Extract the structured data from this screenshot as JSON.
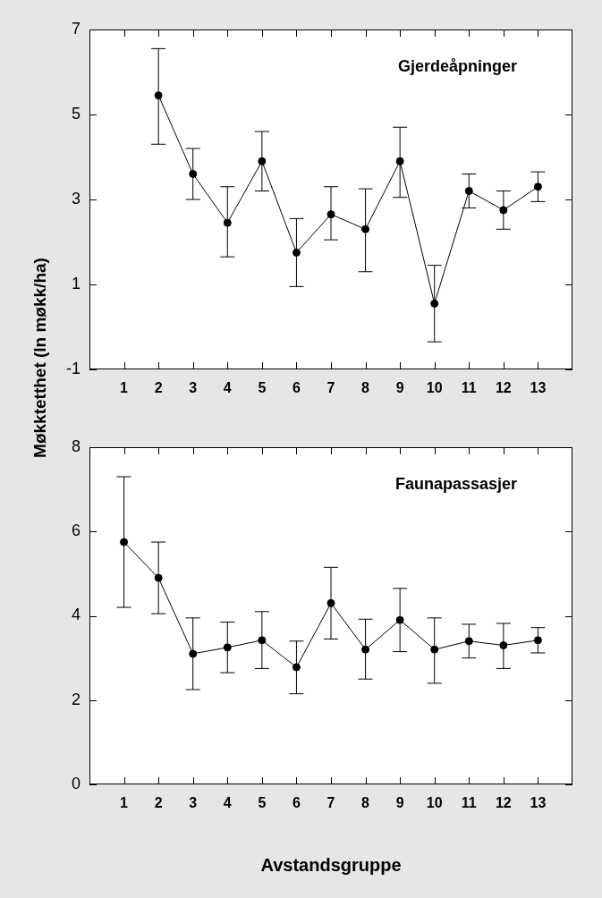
{
  "y_label": "Møkktetthet (ln møkk/ha)",
  "chart_data": [
    {
      "type": "line",
      "title": "Gjerdeåpninger",
      "x": [
        1,
        2,
        3,
        4,
        5,
        6,
        7,
        8,
        9,
        10,
        11,
        12,
        13
      ],
      "values": [
        null,
        5.45,
        3.6,
        2.45,
        3.9,
        1.75,
        2.65,
        2.3,
        3.9,
        0.55,
        3.2,
        2.75,
        3.3
      ],
      "error_low": [
        null,
        4.3,
        3.0,
        1.65,
        3.2,
        0.95,
        2.05,
        1.3,
        3.05,
        -0.35,
        2.8,
        2.3,
        2.95
      ],
      "error_high": [
        null,
        6.55,
        4.2,
        3.3,
        4.6,
        2.55,
        3.3,
        3.25,
        4.7,
        1.45,
        3.6,
        3.2,
        3.65
      ],
      "xlim": [
        0,
        14
      ],
      "xticks": [
        1,
        2,
        3,
        4,
        5,
        6,
        7,
        8,
        9,
        10,
        11,
        12,
        13
      ],
      "ylim": [
        -1,
        7
      ],
      "yticks": [
        -1,
        1,
        3,
        5,
        7
      ],
      "grid": false,
      "color": "#000000",
      "marker": "circle",
      "line_style": "solid"
    },
    {
      "type": "line",
      "title": "Faunapassasjer",
      "x_label": "Avstandsgruppe",
      "x": [
        1,
        2,
        3,
        4,
        5,
        6,
        7,
        8,
        9,
        10,
        11,
        12,
        13
      ],
      "values": [
        5.75,
        4.9,
        3.1,
        3.25,
        3.42,
        2.78,
        4.3,
        3.2,
        3.9,
        3.2,
        3.4,
        3.3,
        3.42
      ],
      "error_low": [
        4.2,
        4.05,
        2.25,
        2.65,
        2.75,
        2.15,
        3.45,
        2.5,
        3.15,
        2.4,
        3.0,
        2.75,
        3.12
      ],
      "error_high": [
        7.3,
        5.75,
        3.95,
        3.85,
        4.1,
        3.4,
        5.15,
        3.92,
        4.65,
        3.95,
        3.8,
        3.82,
        3.72
      ],
      "xlim": [
        0,
        14
      ],
      "xticks": [
        1,
        2,
        3,
        4,
        5,
        6,
        7,
        8,
        9,
        10,
        11,
        12,
        13
      ],
      "ylim": [
        0,
        8
      ],
      "yticks": [
        0,
        2,
        4,
        6,
        8
      ],
      "grid": false,
      "color": "#000000",
      "marker": "circle",
      "line_style": "solid"
    }
  ]
}
